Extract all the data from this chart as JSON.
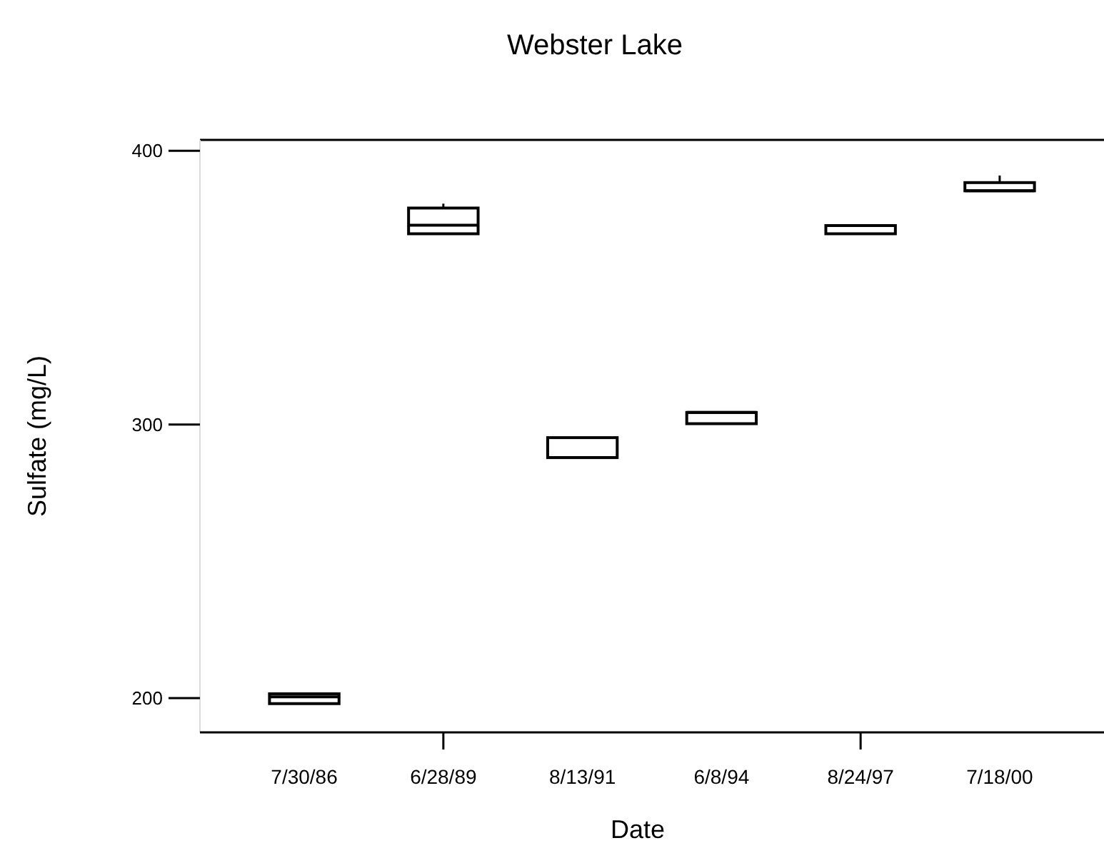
{
  "chart_data": {
    "type": "box",
    "title": "Webster Lake",
    "xlabel": "Date",
    "ylabel": "Sulfate (mg/L)",
    "categories": [
      "7/30/86",
      "6/28/89",
      "8/13/91",
      "6/8/94",
      "8/24/97",
      "7/18/00"
    ],
    "boxes": [
      {
        "low": 198,
        "q1": 198,
        "median": 200.5,
        "q3": 201.6,
        "high": 201.6
      },
      {
        "low": 369.7,
        "q1": 369.7,
        "median": 372.8,
        "q3": 379.1,
        "high": 380.7
      },
      {
        "low": 287.9,
        "q1": 287.9,
        "median": 287.9,
        "q3": 295.2,
        "high": 295.2
      },
      {
        "low": 300.3,
        "q1": 300.3,
        "median": 304.4,
        "q3": 304.4,
        "high": 304.4
      },
      {
        "low": 369.7,
        "q1": 369.7,
        "median": 372.7,
        "q3": 372.7,
        "high": 372.7
      },
      {
        "low": 385.4,
        "q1": 385.4,
        "median": 385.4,
        "q3": 388.4,
        "high": 391
      }
    ],
    "color": "#000000",
    "ylim": [
      187.5,
      404
    ],
    "yticks": [
      200,
      300,
      400
    ],
    "grid": false
  }
}
